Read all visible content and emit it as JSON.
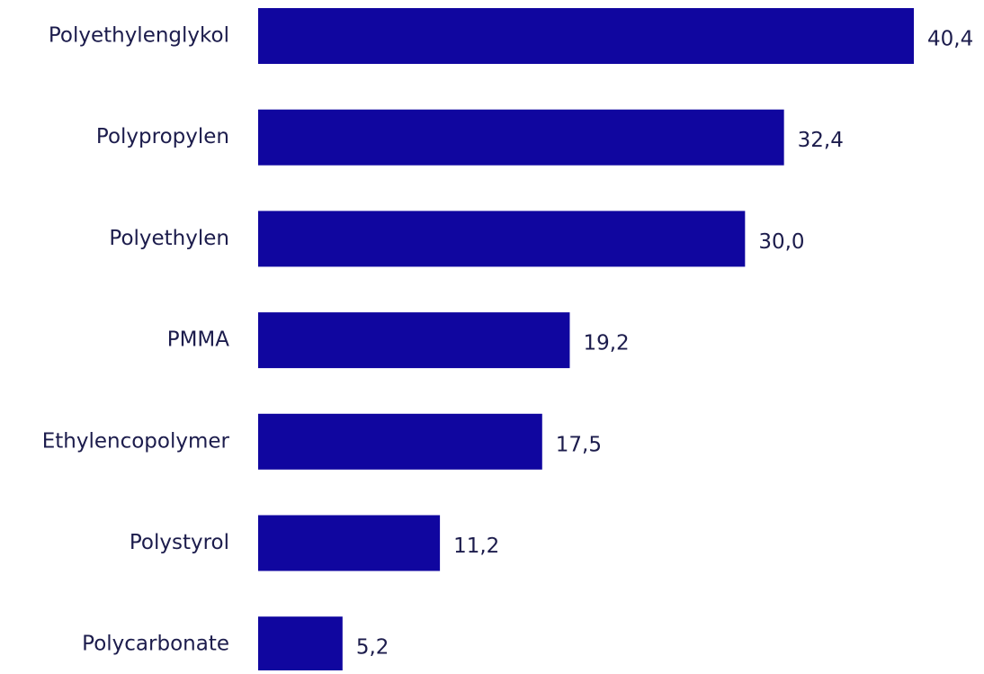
{
  "chart_data": {
    "type": "hbar",
    "categories": [
      "Polyethylenglykol",
      "Polypropylen",
      "Polyethylen",
      "PMMA",
      "Ethylencopolymer",
      "Polystyrol",
      "Polycarbonate"
    ],
    "values": [
      40.4,
      32.4,
      30.0,
      19.2,
      17.5,
      11.2,
      5.2
    ],
    "value_labels": [
      "40,4",
      "32,4",
      "30,0",
      "19,2",
      "17,5",
      "11,2",
      "5,2"
    ],
    "color": "#10069f"
  }
}
